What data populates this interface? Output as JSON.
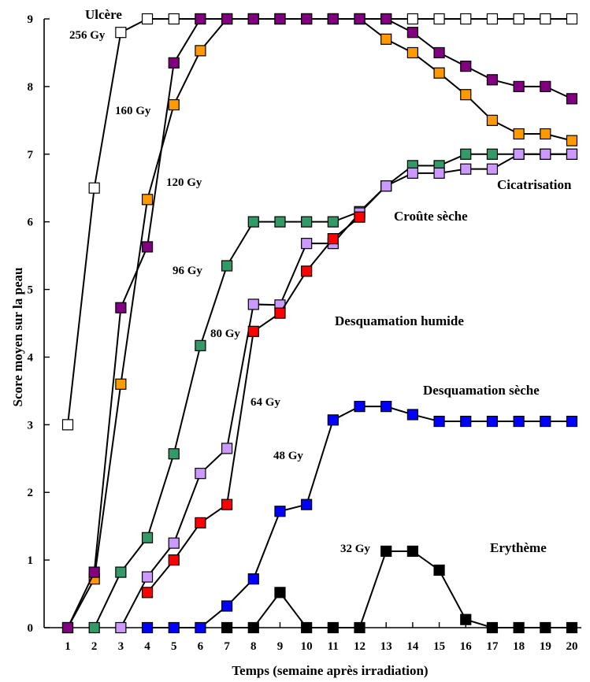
{
  "chart_data": {
    "type": "line",
    "title": "",
    "xlabel": "Temps (semaine après irradiation)",
    "ylabel": "Score moyen sur la peau",
    "xlim": [
      1,
      20
    ],
    "ylim": [
      0,
      9
    ],
    "x_ticks": [
      1,
      2,
      3,
      4,
      5,
      6,
      7,
      8,
      9,
      10,
      11,
      12,
      13,
      14,
      15,
      16,
      17,
      18,
      19,
      20
    ],
    "y_ticks": [
      0,
      1,
      2,
      3,
      4,
      5,
      6,
      7,
      8,
      9
    ],
    "grid": false,
    "legend": "none",
    "series": [
      {
        "name": "256 Gy",
        "color": "#ffffff",
        "x": [
          1,
          2,
          3,
          4,
          5,
          6,
          7,
          8,
          9,
          10,
          11,
          12,
          13,
          14,
          15,
          16,
          17,
          18,
          19,
          20
        ],
        "values": [
          3,
          6.5,
          8.8,
          9,
          9,
          9,
          9,
          9,
          9,
          9,
          9,
          9,
          9,
          9,
          9,
          9,
          9,
          9,
          9,
          9
        ]
      },
      {
        "name": "160 Gy",
        "color": "#ff9900",
        "x": [
          1,
          2,
          3,
          4,
          5,
          6,
          7,
          8,
          9,
          10,
          11,
          12,
          13,
          14,
          15,
          16,
          17,
          18,
          19,
          20
        ],
        "values": [
          0,
          0.72,
          3.6,
          6.33,
          7.73,
          8.53,
          9,
          9,
          9,
          9,
          9,
          9,
          8.7,
          8.5,
          8.2,
          7.88,
          7.5,
          7.3,
          7.3,
          7.2
        ]
      },
      {
        "name": "120 Gy",
        "color": "#800080",
        "x": [
          1,
          2,
          3,
          4,
          5,
          6,
          7,
          8,
          9,
          10,
          11,
          12,
          13,
          14,
          15,
          16,
          17,
          18,
          19,
          20
        ],
        "values": [
          0,
          0.82,
          4.73,
          5.63,
          8.35,
          9,
          9,
          9,
          9,
          9,
          9,
          9,
          9,
          8.8,
          8.5,
          8.3,
          8.1,
          8,
          8,
          7.82
        ]
      },
      {
        "name": "96 Gy",
        "color": "#339966",
        "x": [
          2,
          3,
          4,
          5,
          6,
          7,
          8,
          9,
          10,
          11,
          12,
          13,
          14,
          15,
          16,
          17,
          18,
          19,
          20
        ],
        "values": [
          0,
          0.82,
          1.33,
          2.57,
          4.17,
          5.35,
          6,
          6,
          6,
          6,
          6.15,
          6.53,
          6.83,
          6.83,
          7,
          7,
          7,
          7,
          7
        ]
      },
      {
        "name": "80 Gy",
        "color": "#cc99ff",
        "x": [
          3,
          4,
          5,
          6,
          7,
          8,
          9,
          10,
          11,
          12,
          13,
          14,
          15,
          16,
          17,
          18,
          19,
          20
        ],
        "values": [
          0,
          0.75,
          1.25,
          2.28,
          2.65,
          4.78,
          4.77,
          5.68,
          5.68,
          6.13,
          6.53,
          6.72,
          6.72,
          6.78,
          6.78,
          7,
          7,
          7
        ]
      },
      {
        "name": "64 Gy",
        "color": "#ff0000",
        "x": [
          4,
          5,
          6,
          7,
          8,
          9,
          10,
          11,
          12
        ],
        "values": [
          0.52,
          1,
          1.55,
          1.82,
          4.38,
          4.65,
          5.27,
          5.75,
          6.07
        ]
      },
      {
        "name": "48 Gy",
        "color": "#0000ff",
        "x": [
          4,
          5,
          6,
          7,
          8,
          9,
          10,
          11,
          12,
          13,
          14,
          15,
          16,
          17,
          18,
          19,
          20
        ],
        "values": [
          0,
          0,
          0,
          0.32,
          0.72,
          1.72,
          1.82,
          3.07,
          3.27,
          3.27,
          3.15,
          3.05,
          3.05,
          3.05,
          3.05,
          3.05,
          3.05
        ]
      },
      {
        "name": "32 Gy",
        "color": "#000000",
        "x": [
          7,
          8,
          9,
          10,
          11,
          12,
          13,
          14,
          15,
          16,
          17,
          18,
          19,
          20
        ],
        "values": [
          0,
          0,
          0.52,
          0,
          0,
          0,
          1.13,
          1.13,
          0.85,
          0.12,
          0,
          0,
          0,
          0
        ]
      }
    ],
    "annotations": {
      "ulcere": "Ulcère",
      "cicatrisation": "Cicatrisation",
      "croute_seche": "Croûte sèche",
      "desquamation_humide": "Desquamation humide",
      "desquamation_seche": "Desquamation sèche",
      "erytheme": "Erythème"
    }
  }
}
